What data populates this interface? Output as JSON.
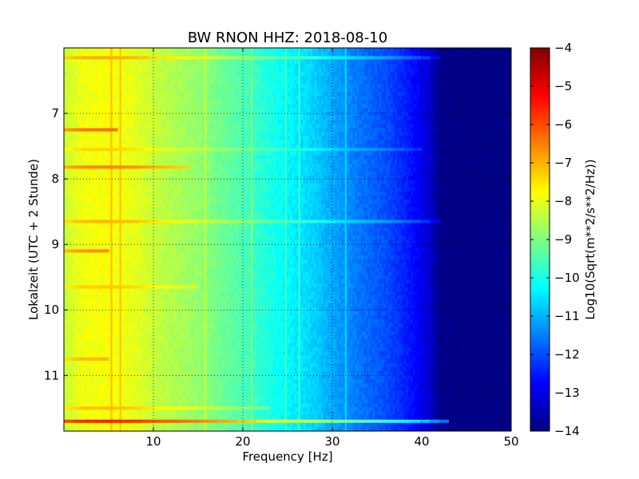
{
  "chart_data": {
    "type": "heatmap",
    "title": "BW RNON HHZ: 2018-08-10",
    "xlabel": "Frequency [Hz]",
    "ylabel": "Lokalzeit (UTC + 2 Stunde)",
    "xlim": [
      0,
      50
    ],
    "ylim": [
      11.85,
      6.0
    ],
    "y_inverted": true,
    "x_ticks": [
      10,
      20,
      30,
      40,
      50
    ],
    "x_tick_labels": [
      "10",
      "20",
      "30",
      "40",
      "50"
    ],
    "y_ticks": [
      7,
      8,
      9,
      10,
      11
    ],
    "y_tick_labels": [
      "7",
      "8",
      "9",
      "10",
      "11"
    ],
    "grid": true,
    "colormap": "jet",
    "colorbar": {
      "label": "Log10(Sqrt(m**2/s**2/Hz))",
      "range": [
        -14,
        -4
      ],
      "ticks": [
        -4,
        -5,
        -6,
        -7,
        -8,
        -9,
        -10,
        -11,
        -12,
        -13,
        -14
      ],
      "tick_labels": [
        "−4",
        "−5",
        "−6",
        "−7",
        "−8",
        "−9",
        "−10",
        "−11",
        "−12",
        "−13",
        "−14"
      ]
    },
    "spectrum_profile": {
      "frequency_hz": [
        0,
        2,
        5,
        8,
        10,
        15,
        20,
        25,
        28,
        30,
        33,
        36,
        38,
        40,
        41,
        42,
        44,
        50
      ],
      "log10_amplitude": [
        -8.3,
        -7.9,
        -7.8,
        -8.0,
        -8.3,
        -8.8,
        -9.5,
        -10.3,
        -10.7,
        -11.1,
        -11.6,
        -12.0,
        -12.4,
        -12.9,
        -13.3,
        -13.9,
        -14.0,
        -14.0
      ]
    },
    "persistent_lines_hz": [
      5.3,
      6.3,
      15.8,
      21.0,
      24.8,
      26.3,
      31.5
    ],
    "event_bands": [
      {
        "hour": 6.15,
        "fmax_hz": 42,
        "delta": 0.9
      },
      {
        "hour": 7.25,
        "fmax_hz": 6,
        "delta": 1.5
      },
      {
        "hour": 7.55,
        "fmax_hz": 40,
        "delta": 0.5
      },
      {
        "hour": 7.82,
        "fmax_hz": 14,
        "delta": 1.3
      },
      {
        "hour": 8.65,
        "fmax_hz": 42,
        "delta": 0.8
      },
      {
        "hour": 9.1,
        "fmax_hz": 5,
        "delta": 1.2
      },
      {
        "hour": 9.65,
        "fmax_hz": 15,
        "delta": 0.6
      },
      {
        "hour": 10.75,
        "fmax_hz": 5,
        "delta": 0.8
      },
      {
        "hour": 11.5,
        "fmax_hz": 23,
        "delta": 0.7
      },
      {
        "hour": 11.7,
        "fmax_hz": 43,
        "delta": 2.3
      }
    ]
  }
}
